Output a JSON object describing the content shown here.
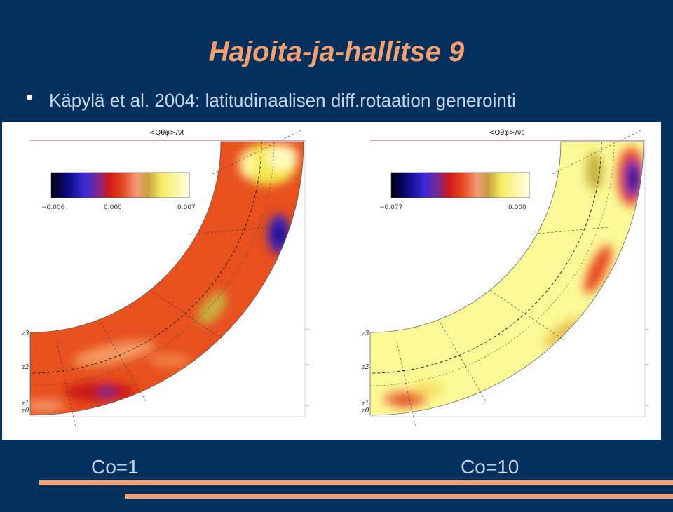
{
  "slide": {
    "title": "Hajoita-ja-hallitse 9",
    "bullet": "Käpylä et al. 2004: latitudinaalisen diff.rotaation generointi"
  },
  "panels": [
    {
      "heading": "<Qθφ>/νt",
      "colorbar_min": "−0.006",
      "colorbar_mid": "0.000",
      "colorbar_max": "0.007",
      "z_labels": [
        "z3",
        "z2",
        "z1",
        "z0"
      ],
      "caption": "Co=1"
    },
    {
      "heading": "<Qθφ>/νt",
      "colorbar_min": "−0.077",
      "colorbar_max": "0.000",
      "z_labels": [
        "z3",
        "z2",
        "z1",
        "z0"
      ],
      "caption": "Co=10"
    }
  ],
  "colors": {
    "background": "#04305e",
    "accent": "#f4a070",
    "text": "#c8d6ea"
  }
}
